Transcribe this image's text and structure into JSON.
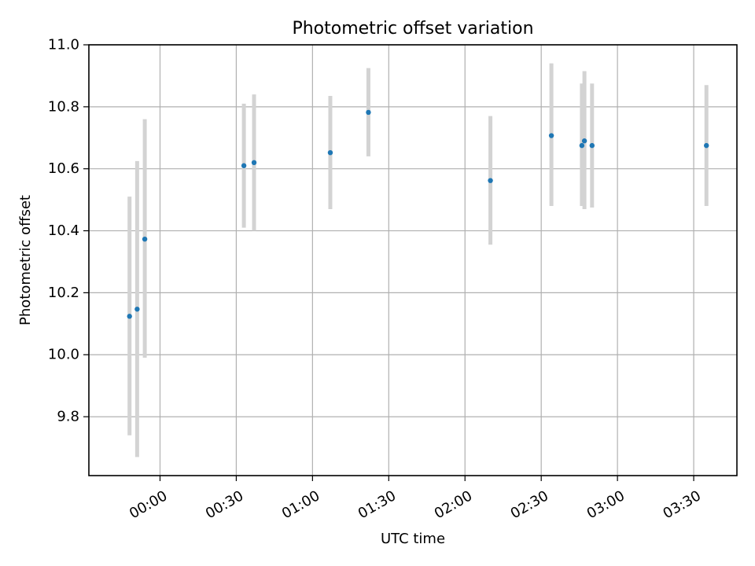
{
  "chart_data": {
    "type": "scatter",
    "title": "Photometric offset variation",
    "xlabel": "UTC time",
    "ylabel": "Photometric offset",
    "grid": true,
    "x_tick_labels": [
      "00:00",
      "00:30",
      "01:00",
      "01:30",
      "02:00",
      "02:30",
      "03:00",
      "03:30"
    ],
    "y_tick_labels": [
      "9.8",
      "10.0",
      "10.2",
      "10.4",
      "10.6",
      "10.8",
      "11.0"
    ],
    "x_ticks": [
      "00:00",
      "00:30",
      "01:00",
      "01:30",
      "02:00",
      "02:30",
      "03:00",
      "03:30"
    ],
    "y_ticks": [
      9.8,
      10.0,
      10.2,
      10.4,
      10.6,
      10.8,
      11.0
    ],
    "xlim": [
      "23:32",
      "03:47"
    ],
    "ylim": [
      9.61,
      11.0
    ],
    "colors": {
      "point": "#1f77b4",
      "errorbar": "#d3d3d3"
    },
    "series": [
      {
        "points": [
          {
            "x": "23:48",
            "y": 10.124,
            "y_low": 9.74,
            "y_high": 10.51
          },
          {
            "x": "23:51",
            "y": 10.147,
            "y_low": 9.67,
            "y_high": 10.625
          },
          {
            "x": "23:54",
            "y": 10.373,
            "y_low": 9.99,
            "y_high": 10.76
          },
          {
            "x": "00:33",
            "y": 10.61,
            "y_low": 10.41,
            "y_high": 10.81
          },
          {
            "x": "00:37",
            "y": 10.62,
            "y_low": 10.4,
            "y_high": 10.84
          },
          {
            "x": "01:07",
            "y": 10.652,
            "y_low": 10.47,
            "y_high": 10.835
          },
          {
            "x": "01:22",
            "y": 10.782,
            "y_low": 10.64,
            "y_high": 10.925
          },
          {
            "x": "02:10",
            "y": 10.562,
            "y_low": 10.355,
            "y_high": 10.77
          },
          {
            "x": "02:34",
            "y": 10.707,
            "y_low": 10.48,
            "y_high": 10.94
          },
          {
            "x": "02:46",
            "y": 10.675,
            "y_low": 10.48,
            "y_high": 10.875
          },
          {
            "x": "02:47",
            "y": 10.69,
            "y_low": 10.47,
            "y_high": 10.915
          },
          {
            "x": "02:50",
            "y": 10.675,
            "y_low": 10.475,
            "y_high": 10.875
          },
          {
            "x": "03:35",
            "y": 10.675,
            "y_low": 10.48,
            "y_high": 10.87
          }
        ]
      }
    ]
  }
}
